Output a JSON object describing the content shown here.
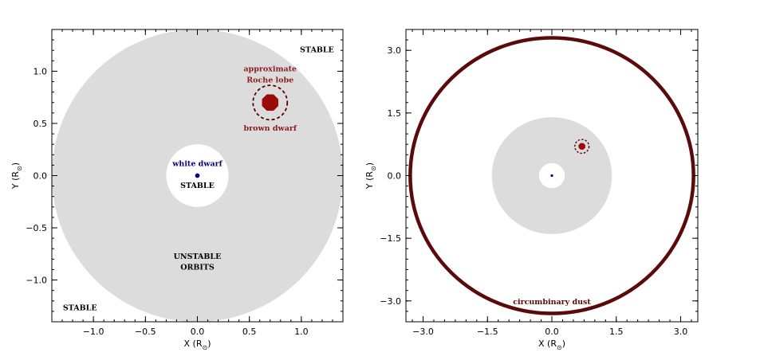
{
  "chart_data": [
    {
      "type": "scatter",
      "title": "",
      "xlabel": "X (R",
      "ylabel": "Y (R",
      "label_suffix": ")",
      "sun_symbol": "⊙",
      "xlim": [
        -1.4,
        1.4
      ],
      "ylim": [
        -1.4,
        1.4
      ],
      "xticks": [
        -1.0,
        -0.5,
        0.0,
        0.5,
        1.0
      ],
      "yticks": [
        -1.0,
        -0.5,
        0.0,
        0.5,
        1.0
      ],
      "xtick_labels": [
        "−1.0",
        "−0.5",
        "0.0",
        "0.5",
        "1.0"
      ],
      "ytick_labels": [
        "−1.0",
        "−0.5",
        "0.0",
        "0.5",
        "1.0"
      ],
      "minor_step": 0.1,
      "unstable_region": {
        "center": [
          0,
          0
        ],
        "inner_radius": 0.3,
        "outer_radius": 1.4
      },
      "white_dwarf": {
        "x": 0.0,
        "y": 0.0,
        "radius": 0.022
      },
      "brown_dwarf": {
        "x": 0.7,
        "y": 0.7,
        "radius": 0.085
      },
      "roche_lobe": {
        "x": 0.7,
        "y": 0.7,
        "radius": 0.165
      },
      "annotations": [
        {
          "text": "STABLE",
          "x": 1.15,
          "y": 1.2,
          "color": "#000000"
        },
        {
          "text": "approximate",
          "x": 0.7,
          "y": 1.02,
          "color": "#8b1a1a"
        },
        {
          "text": "Roche lobe",
          "x": 0.7,
          "y": 0.91,
          "color": "#8b1a1a"
        },
        {
          "text": "brown dwarf",
          "x": 0.7,
          "y": 0.45,
          "color": "#8b1a1a"
        },
        {
          "text": "white dwarf",
          "x": 0.0,
          "y": 0.11,
          "color": "#000080"
        },
        {
          "text": "STABLE",
          "x": 0.0,
          "y": -0.1,
          "color": "#000000"
        },
        {
          "text": "UNSTABLE",
          "x": 0.0,
          "y": -0.78,
          "color": "#000000"
        },
        {
          "text": "ORBITS",
          "x": 0.0,
          "y": -0.88,
          "color": "#000000"
        },
        {
          "text": "STABLE",
          "x": -1.13,
          "y": -1.27,
          "color": "#000000"
        }
      ],
      "colors": {
        "region": "#dcdcdc",
        "brown_dwarf": "#9b0a0a",
        "roche_lobe": "#5a0000",
        "white_dwarf": "#000080"
      }
    },
    {
      "type": "scatter",
      "title": "",
      "xlabel": "X (R",
      "ylabel": "Y (R",
      "label_suffix": ")",
      "sun_symbol": "⊙",
      "xlim": [
        -3.4,
        3.4
      ],
      "ylim": [
        -3.5,
        3.5
      ],
      "xticks": [
        -3.0,
        -1.5,
        0.0,
        1.5,
        3.0
      ],
      "yticks": [
        -3.0,
        -1.5,
        0.0,
        1.5,
        3.0
      ],
      "xtick_labels": [
        "−3.0",
        "−1.5",
        "0.0",
        "1.5",
        "3.0"
      ],
      "ytick_labels": [
        "−3.0",
        "−1.5",
        "0.0",
        "1.5",
        "3.0"
      ],
      "minor_step": 0.25,
      "unstable_region": {
        "center": [
          0,
          0
        ],
        "inner_radius": 0.3,
        "outer_radius": 1.4
      },
      "white_dwarf": {
        "x": 0.0,
        "y": 0.0,
        "radius": 0.03
      },
      "brown_dwarf": {
        "x": 0.7,
        "y": 0.7,
        "radius": 0.085
      },
      "roche_lobe": {
        "x": 0.7,
        "y": 0.7,
        "radius": 0.165
      },
      "dust_ring": {
        "center": [
          0,
          0
        ],
        "radius": 3.3,
        "color": "#5a0a0a"
      },
      "annotations": [
        {
          "text": "circumbinary dust",
          "x": 0.0,
          "y": -3.03,
          "color": "#5a0a0a"
        }
      ],
      "colors": {
        "region": "#dcdcdc",
        "brown_dwarf": "#9b0a0a",
        "roche_lobe": "#5a0000",
        "white_dwarf": "#000080"
      }
    }
  ]
}
